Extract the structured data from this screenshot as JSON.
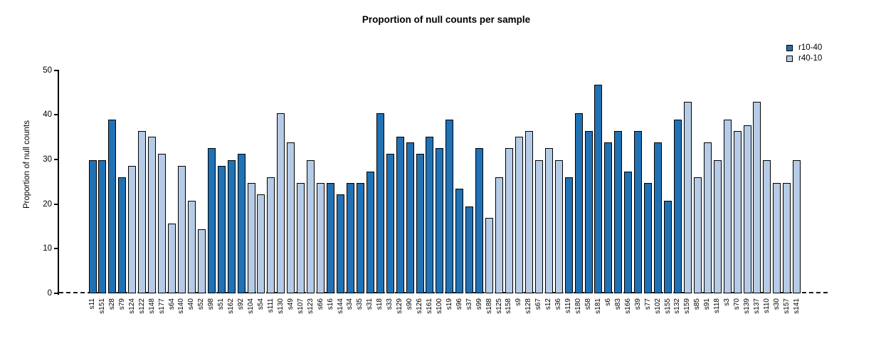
{
  "title": "Proportion of null counts per sample",
  "y_axis": {
    "label": "Proportion of null counts"
  },
  "legend": {
    "items": [
      {
        "label": "r10-40",
        "color": "#2171B5"
      },
      {
        "label": "r40-10",
        "color": "#B5CBE6"
      }
    ]
  },
  "chart_data": {
    "type": "bar",
    "title": "Proportion of null counts per sample",
    "xlabel": "",
    "ylabel": "Proportion of null counts",
    "ylim": [
      0,
      50
    ],
    "yticks": [
      0,
      10,
      20,
      30,
      40,
      50
    ],
    "grid": false,
    "legend_position": "top-right",
    "baseline_style": "dashed-zero-line",
    "series": [
      {
        "name": "r10-40",
        "color": "#2171B5"
      },
      {
        "name": "r40-10",
        "color": "#B5CBE6"
      }
    ],
    "bars": [
      {
        "label": "s11",
        "value": 29.9,
        "series": "r10-40"
      },
      {
        "label": "s151",
        "value": 29.9,
        "series": "r10-40"
      },
      {
        "label": "s28",
        "value": 39.0,
        "series": "r10-40"
      },
      {
        "label": "s79",
        "value": 26.0,
        "series": "r10-40"
      },
      {
        "label": "s124",
        "value": 28.6,
        "series": "r40-10"
      },
      {
        "label": "s122",
        "value": 36.4,
        "series": "r40-10"
      },
      {
        "label": "s148",
        "value": 35.1,
        "series": "r40-10"
      },
      {
        "label": "s177",
        "value": 31.2,
        "series": "r40-10"
      },
      {
        "label": "s64",
        "value": 15.6,
        "series": "r40-10"
      },
      {
        "label": "s140",
        "value": 28.6,
        "series": "r40-10"
      },
      {
        "label": "s40",
        "value": 20.8,
        "series": "r40-10"
      },
      {
        "label": "s52",
        "value": 14.3,
        "series": "r40-10"
      },
      {
        "label": "s98",
        "value": 32.5,
        "series": "r10-40"
      },
      {
        "label": "s51",
        "value": 28.6,
        "series": "r10-40"
      },
      {
        "label": "s162",
        "value": 29.9,
        "series": "r10-40"
      },
      {
        "label": "s92",
        "value": 31.2,
        "series": "r10-40"
      },
      {
        "label": "s104",
        "value": 24.7,
        "series": "r40-10"
      },
      {
        "label": "s54",
        "value": 22.1,
        "series": "r40-10"
      },
      {
        "label": "s111",
        "value": 26.0,
        "series": "r40-10"
      },
      {
        "label": "s130",
        "value": 40.3,
        "series": "r40-10"
      },
      {
        "label": "s49",
        "value": 33.8,
        "series": "r40-10"
      },
      {
        "label": "s107",
        "value": 24.7,
        "series": "r40-10"
      },
      {
        "label": "s123",
        "value": 29.9,
        "series": "r40-10"
      },
      {
        "label": "s66",
        "value": 24.7,
        "series": "r40-10"
      },
      {
        "label": "s16",
        "value": 24.7,
        "series": "r10-40"
      },
      {
        "label": "s144",
        "value": 22.1,
        "series": "r10-40"
      },
      {
        "label": "s34",
        "value": 24.7,
        "series": "r10-40"
      },
      {
        "label": "s35",
        "value": 24.7,
        "series": "r10-40"
      },
      {
        "label": "s31",
        "value": 27.3,
        "series": "r10-40"
      },
      {
        "label": "s18",
        "value": 40.3,
        "series": "r10-40"
      },
      {
        "label": "s33",
        "value": 31.2,
        "series": "r10-40"
      },
      {
        "label": "s129",
        "value": 35.1,
        "series": "r10-40"
      },
      {
        "label": "s90",
        "value": 33.8,
        "series": "r10-40"
      },
      {
        "label": "s126",
        "value": 31.2,
        "series": "r10-40"
      },
      {
        "label": "s161",
        "value": 35.1,
        "series": "r10-40"
      },
      {
        "label": "s100",
        "value": 32.5,
        "series": "r10-40"
      },
      {
        "label": "s19",
        "value": 39.0,
        "series": "r10-40"
      },
      {
        "label": "s96",
        "value": 23.4,
        "series": "r10-40"
      },
      {
        "label": "s37",
        "value": 19.5,
        "series": "r10-40"
      },
      {
        "label": "s99",
        "value": 32.5,
        "series": "r10-40"
      },
      {
        "label": "s188",
        "value": 16.9,
        "series": "r40-10"
      },
      {
        "label": "s125",
        "value": 26.0,
        "series": "r40-10"
      },
      {
        "label": "s158",
        "value": 32.5,
        "series": "r40-10"
      },
      {
        "label": "s9",
        "value": 35.1,
        "series": "r40-10"
      },
      {
        "label": "s128",
        "value": 36.4,
        "series": "r40-10"
      },
      {
        "label": "s67",
        "value": 29.9,
        "series": "r40-10"
      },
      {
        "label": "s12",
        "value": 32.5,
        "series": "r40-10"
      },
      {
        "label": "s36",
        "value": 29.9,
        "series": "r40-10"
      },
      {
        "label": "s119",
        "value": 26.0,
        "series": "r10-40"
      },
      {
        "label": "s180",
        "value": 40.3,
        "series": "r10-40"
      },
      {
        "label": "s58",
        "value": 36.4,
        "series": "r10-40"
      },
      {
        "label": "s181",
        "value": 46.8,
        "series": "r10-40"
      },
      {
        "label": "s6",
        "value": 33.8,
        "series": "r10-40"
      },
      {
        "label": "s83",
        "value": 36.4,
        "series": "r10-40"
      },
      {
        "label": "s166",
        "value": 27.3,
        "series": "r10-40"
      },
      {
        "label": "s39",
        "value": 36.4,
        "series": "r10-40"
      },
      {
        "label": "s77",
        "value": 24.7,
        "series": "r10-40"
      },
      {
        "label": "s102",
        "value": 33.8,
        "series": "r10-40"
      },
      {
        "label": "s155",
        "value": 20.8,
        "series": "r10-40"
      },
      {
        "label": "s132",
        "value": 39.0,
        "series": "r10-40"
      },
      {
        "label": "s159",
        "value": 42.9,
        "series": "r40-10"
      },
      {
        "label": "s85",
        "value": 26.0,
        "series": "r40-10"
      },
      {
        "label": "s91",
        "value": 33.8,
        "series": "r40-10"
      },
      {
        "label": "s118",
        "value": 29.9,
        "series": "r40-10"
      },
      {
        "label": "s3",
        "value": 39.0,
        "series": "r40-10"
      },
      {
        "label": "s70",
        "value": 36.4,
        "series": "r40-10"
      },
      {
        "label": "s139",
        "value": 37.7,
        "series": "r40-10"
      },
      {
        "label": "s137",
        "value": 42.9,
        "series": "r40-10"
      },
      {
        "label": "s110",
        "value": 29.9,
        "series": "r40-10"
      },
      {
        "label": "s30",
        "value": 24.7,
        "series": "r40-10"
      },
      {
        "label": "s157",
        "value": 24.7,
        "series": "r40-10"
      },
      {
        "label": "s141",
        "value": 29.9,
        "series": "r40-10"
      }
    ]
  }
}
